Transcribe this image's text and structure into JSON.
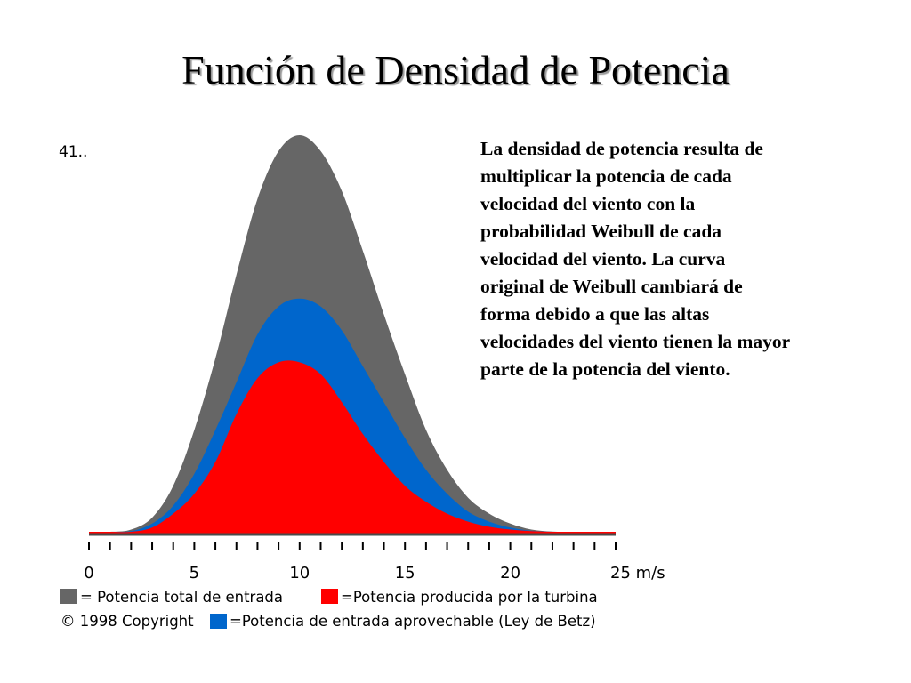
{
  "title": "Función de Densidad de Potencia",
  "description": "La densidad de potencia resulta de multiplicar la potencia de cada velocidad del viento con la probabilidad Weibull de cada velocidad del viento. La curva original de Weibull cambiará de forma debido a que las altas velocidades del viento tienen la mayor parte de la potencia del viento.",
  "chart": {
    "corner_label": "41..",
    "copyright": "© 1998 Copyright"
  },
  "chart_data": {
    "type": "area",
    "xlim": [
      0,
      25
    ],
    "x_ticks": [
      {
        "value": 0,
        "label": "0"
      },
      {
        "value": 5,
        "label": "5"
      },
      {
        "value": 10,
        "label": "10"
      },
      {
        "value": 15,
        "label": "15"
      },
      {
        "value": 20,
        "label": "20"
      },
      {
        "value": 25,
        "label": "25 m/s"
      }
    ],
    "minor_tick_step": 1,
    "ylim": [
      0,
      1
    ],
    "x": [
      0,
      1,
      2,
      3,
      4,
      5,
      6,
      7,
      8,
      9,
      10,
      11,
      12,
      13,
      14,
      15,
      16,
      17,
      18,
      19,
      20,
      21,
      22,
      23,
      24,
      25
    ],
    "series": [
      {
        "name": "= Potencia total de entrada",
        "color": "#666666",
        "values": [
          0,
          0.001,
          0.01,
          0.04,
          0.12,
          0.26,
          0.44,
          0.65,
          0.84,
          0.96,
          1.0,
          0.96,
          0.86,
          0.71,
          0.55,
          0.4,
          0.26,
          0.16,
          0.09,
          0.05,
          0.025,
          0.01,
          0.005,
          0.002,
          0.001,
          0
        ]
      },
      {
        "name": "=Potencia de entrada aprovechable (Ley de Betz)",
        "color": "#0066cc",
        "values": [
          0,
          0.001,
          0.006,
          0.025,
          0.07,
          0.15,
          0.26,
          0.38,
          0.5,
          0.57,
          0.59,
          0.57,
          0.51,
          0.42,
          0.33,
          0.24,
          0.16,
          0.1,
          0.055,
          0.03,
          0.015,
          0.007,
          0.003,
          0.001,
          0.001,
          0
        ]
      },
      {
        "name": "=Potencia producida por la turbina",
        "color": "#ff0000",
        "values": [
          0,
          0.001,
          0.004,
          0.015,
          0.05,
          0.1,
          0.18,
          0.3,
          0.39,
          0.43,
          0.43,
          0.4,
          0.33,
          0.25,
          0.18,
          0.12,
          0.08,
          0.05,
          0.03,
          0.017,
          0.01,
          0.006,
          0.004,
          0.003,
          0.002,
          0
        ]
      }
    ],
    "legend_position": "bottom"
  }
}
